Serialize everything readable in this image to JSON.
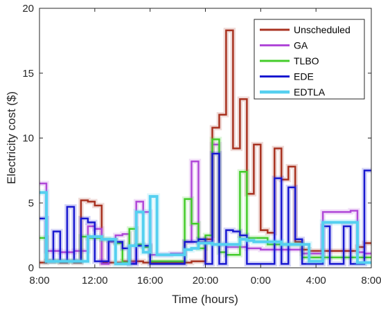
{
  "chart_data": {
    "type": "line",
    "title": "",
    "xlabel": "Time (hours)",
    "ylabel": "Electricity cost ($)",
    "xlim": [
      8,
      32
    ],
    "ylim": [
      0,
      20
    ],
    "x_tick_values": [
      8,
      12,
      16,
      20,
      24,
      28,
      32
    ],
    "x_tick_labels": [
      "8:00",
      "12:00",
      "16:00",
      "20:00",
      "0:00",
      "4:00",
      "8:00"
    ],
    "y_tick_values": [
      0,
      5,
      10,
      15,
      20
    ],
    "y_tick_labels": [
      "0",
      "5",
      "10",
      "15",
      "20"
    ],
    "grid": false,
    "legend_position": "top-right",
    "step_width_hours": 0.5,
    "series": [
      {
        "name": "Unscheduled",
        "color": "#a83220",
        "line_width": 2.5,
        "values": [
          0.4,
          0.5,
          0.5,
          0.4,
          0.5,
          0.4,
          5.2,
          5.1,
          4.8,
          0.4,
          0.4,
          0.4,
          0.5,
          0.5,
          0.5,
          0.4,
          0.4,
          0.4,
          0.4,
          0.4,
          0.4,
          0.4,
          0.5,
          0.5,
          2.2,
          10.8,
          11.8,
          18.3,
          9.2,
          13.0,
          5.7,
          9.5,
          2.9,
          2.7,
          9.2,
          6.8,
          7.8,
          2.0,
          1.4,
          1.3,
          1.3,
          1.3,
          1.3,
          1.3,
          1.3,
          1.3,
          1.6,
          1.9
        ]
      },
      {
        "name": "GA",
        "color": "#b048d8",
        "line_width": 2.5,
        "values": [
          6.5,
          1.3,
          1.3,
          1.2,
          1.2,
          1.3,
          1.3,
          3.2,
          3.0,
          0.3,
          2.0,
          2.5,
          2.6,
          0.4,
          5.1,
          4.3,
          1.0,
          1.0,
          1.0,
          1.1,
          1.1,
          2.0,
          8.2,
          2.0,
          2.0,
          9.5,
          1.8,
          1.6,
          1.6,
          1.6,
          1.5,
          1.5,
          1.4,
          1.4,
          1.4,
          1.4,
          1.4,
          1.4,
          1.1,
          1.1,
          1.1,
          4.3,
          4.3,
          4.3,
          4.3,
          4.4,
          1.2,
          1.1
        ]
      },
      {
        "name": "TLBO",
        "color": "#44cc2a",
        "line_width": 2.5,
        "values": [
          2.3,
          0.5,
          0.5,
          0.5,
          0.5,
          0.5,
          2.4,
          2.3,
          2.3,
          2.2,
          2.1,
          1.9,
          0.4,
          3.0,
          1.8,
          1.6,
          0.5,
          0.5,
          0.5,
          0.5,
          0.5,
          5.3,
          3.4,
          1.5,
          2.5,
          9.9,
          1.2,
          1.0,
          1.0,
          7.4,
          2.3,
          2.3,
          2.3,
          1.8,
          1.8,
          1.8,
          1.8,
          1.8,
          0.8,
          0.8,
          0.8,
          0.8,
          0.8,
          0.8,
          0.8,
          0.8,
          0.8,
          0.8
        ]
      },
      {
        "name": "EDE",
        "color": "#1818d0",
        "line_width": 2.5,
        "values": [
          3.8,
          0.5,
          2.8,
          0.5,
          4.7,
          0.5,
          3.8,
          3.5,
          0.5,
          0.5,
          2.1,
          2.0,
          1.5,
          0.3,
          1.7,
          1.7,
          0.3,
          0.3,
          0.3,
          0.3,
          0.3,
          2.0,
          2.0,
          2.2,
          0.3,
          8.8,
          0.3,
          2.9,
          2.8,
          2.5,
          0.3,
          0.3,
          0.3,
          0.3,
          6.9,
          0.3,
          6.2,
          2.2,
          0.3,
          0.3,
          0.3,
          3.2,
          0.3,
          0.3,
          3.2,
          0.3,
          0.3,
          7.5
        ]
      },
      {
        "name": "EDTLA",
        "color": "#55d0f0",
        "line_width": 4,
        "values": [
          5.8,
          0.5,
          0.5,
          0.5,
          0.5,
          0.5,
          0.5,
          2.4,
          2.4,
          2.2,
          2.2,
          0.3,
          0.3,
          1.7,
          4.3,
          1.2,
          5.5,
          1.0,
          1.0,
          1.0,
          1.0,
          1.4,
          1.5,
          1.9,
          1.9,
          1.8,
          1.8,
          1.8,
          1.8,
          2.2,
          2.1,
          2.0,
          2.0,
          2.0,
          2.0,
          1.8,
          1.8,
          1.8,
          1.8,
          0.5,
          0.5,
          3.5,
          3.5,
          3.5,
          3.5,
          3.5,
          0.4,
          0.4
        ]
      }
    ]
  }
}
